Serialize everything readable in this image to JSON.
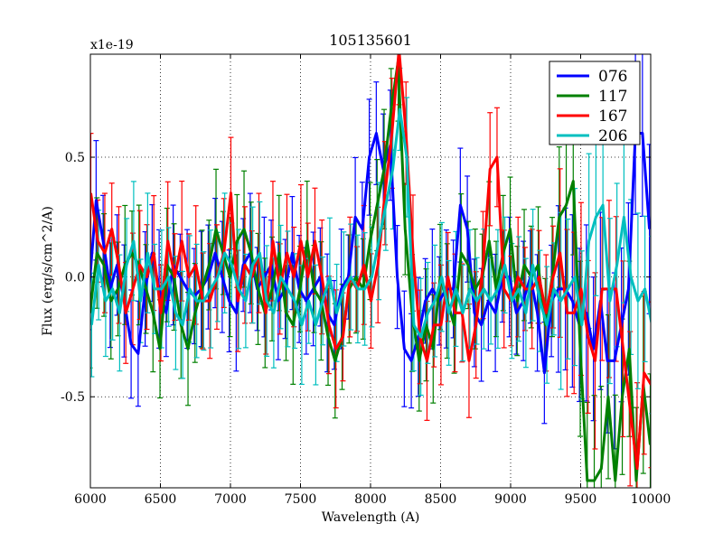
{
  "chart_data": {
    "type": "line",
    "title": "105135601",
    "xlabel": "Wavelength (A)",
    "ylabel": "Flux (erg/s/cm^2/A)",
    "offset_label": "x1e-19",
    "xlim": [
      6000,
      10000
    ],
    "ylim": [
      -0.88,
      0.93
    ],
    "xticks": [
      6000,
      6500,
      7000,
      7500,
      8000,
      8500,
      9000,
      9500,
      10000
    ],
    "xtick_labels": [
      "6000",
      "6500",
      "7000",
      "7500",
      "8000",
      "8500",
      "9000",
      "9500",
      "10000"
    ],
    "yticks": [
      -0.5,
      0.0,
      0.5
    ],
    "ytick_labels": [
      "-0.5",
      "0.0",
      "0.5"
    ],
    "grid": true,
    "legend_position": "top-right",
    "x": [
      6000,
      6050,
      6100,
      6150,
      6200,
      6250,
      6300,
      6350,
      6400,
      6450,
      6500,
      6550,
      6600,
      6650,
      6700,
      6750,
      6800,
      6850,
      6900,
      6950,
      7000,
      7050,
      7100,
      7150,
      7200,
      7250,
      7300,
      7350,
      7400,
      7450,
      7500,
      7550,
      7600,
      7650,
      7700,
      7750,
      7800,
      7850,
      7900,
      7950,
      8000,
      8050,
      8100,
      8150,
      8200,
      8250,
      8300,
      8350,
      8400,
      8450,
      8500,
      8550,
      8600,
      8650,
      8700,
      8750,
      8800,
      8850,
      8900,
      8950,
      9000,
      9050,
      9100,
      9150,
      9200,
      9250,
      9300,
      9350,
      9400,
      9450,
      9500,
      9550,
      9600,
      9650,
      9700,
      9750,
      9800,
      9850,
      9900,
      9950,
      10000
    ],
    "series": [
      {
        "name": "076",
        "color": "#0000ff",
        "values": [
          -0.05,
          0.32,
          0.15,
          -0.05,
          0.05,
          -0.1,
          -0.28,
          -0.32,
          -0.05,
          0.1,
          -0.05,
          -0.15,
          0.05,
          0.0,
          -0.05,
          -0.08,
          -0.05,
          0.0,
          0.1,
          0.0,
          -0.1,
          -0.15,
          0.05,
          0.1,
          -0.05,
          0.0,
          0.05,
          -0.1,
          -0.05,
          0.1,
          -0.05,
          -0.1,
          -0.05,
          0.0,
          -0.15,
          -0.2,
          -0.05,
          0.0,
          0.25,
          0.2,
          0.5,
          0.6,
          0.45,
          0.55,
          0.0,
          -0.3,
          -0.35,
          -0.25,
          -0.1,
          -0.05,
          -0.1,
          -0.05,
          -0.05,
          0.3,
          0.2,
          -0.15,
          -0.2,
          -0.1,
          -0.15,
          0.0,
          0.0,
          -0.15,
          -0.1,
          0.0,
          -0.15,
          -0.4,
          -0.1,
          -0.05,
          -0.05,
          -0.1,
          -0.2,
          -0.15,
          -0.3,
          -0.1,
          -0.35,
          -0.35,
          -0.2,
          -0.05,
          0.6,
          0.6,
          0.2
        ]
      },
      {
        "name": "117",
        "color": "#008000",
        "values": [
          -0.15,
          0.1,
          0.05,
          -0.1,
          -0.05,
          0.05,
          0.1,
          0.05,
          -0.05,
          -0.15,
          -0.3,
          0.05,
          0.0,
          -0.2,
          -0.3,
          -0.15,
          -0.05,
          0.05,
          0.2,
          0.1,
          0.0,
          0.15,
          0.2,
          0.1,
          -0.05,
          -0.15,
          -0.05,
          0.1,
          -0.15,
          -0.2,
          -0.05,
          0.15,
          -0.05,
          -0.1,
          -0.25,
          -0.35,
          -0.25,
          -0.05,
          0.0,
          -0.05,
          0.15,
          0.3,
          0.45,
          0.7,
          0.9,
          0.2,
          -0.15,
          -0.35,
          -0.2,
          -0.3,
          0.0,
          -0.1,
          -0.2,
          0.1,
          0.05,
          -0.05,
          0.0,
          0.15,
          -0.05,
          0.1,
          0.2,
          -0.1,
          0.05,
          0.0,
          0.05,
          -0.2,
          0.0,
          0.25,
          0.3,
          0.4,
          -0.3,
          -0.85,
          -0.85,
          -0.8,
          -0.5,
          -0.85,
          -0.5,
          -0.3,
          -0.85,
          -0.45,
          -0.7
        ]
      },
      {
        "name": "167",
        "color": "#ff0000",
        "values": [
          0.35,
          0.15,
          0.1,
          0.2,
          0.05,
          -0.15,
          -0.05,
          0.05,
          0.0,
          0.1,
          -0.15,
          0.15,
          0.0,
          0.15,
          0.0,
          0.05,
          -0.1,
          -0.1,
          0.0,
          0.1,
          0.35,
          -0.1,
          0.05,
          0.0,
          0.1,
          -0.15,
          0.15,
          -0.05,
          0.1,
          0.0,
          0.15,
          0.0,
          0.15,
          0.0,
          -0.2,
          -0.3,
          -0.25,
          0.0,
          -0.05,
          0.05,
          -0.1,
          0.05,
          0.35,
          0.6,
          0.95,
          0.6,
          0.1,
          -0.25,
          -0.35,
          -0.2,
          -0.2,
          0.0,
          -0.15,
          -0.15,
          -0.35,
          -0.2,
          0.05,
          0.45,
          0.5,
          -0.05,
          -0.1,
          0.0,
          -0.05,
          -0.05,
          0.0,
          -0.15,
          0.0,
          0.1,
          -0.15,
          -0.15,
          -0.05,
          -0.25,
          -0.35,
          -0.05,
          -0.05,
          -0.05,
          -0.3,
          -0.55,
          -0.8,
          -0.4,
          -0.45
        ]
      },
      {
        "name": "206",
        "color": "#00bfbf",
        "values": [
          -0.2,
          0.05,
          -0.1,
          -0.05,
          -0.15,
          0.05,
          0.15,
          -0.1,
          0.1,
          -0.05,
          -0.05,
          0.0,
          -0.15,
          -0.2,
          -0.05,
          -0.1,
          -0.1,
          -0.05,
          0.0,
          0.1,
          0.05,
          -0.05,
          -0.1,
          0.05,
          0.1,
          -0.1,
          -0.15,
          0.0,
          -0.05,
          -0.1,
          -0.2,
          -0.1,
          -0.2,
          -0.1,
          0.0,
          -0.15,
          -0.05,
          0.0,
          -0.05,
          -0.05,
          0.0,
          0.15,
          0.3,
          0.45,
          0.7,
          0.5,
          -0.2,
          -0.25,
          -0.15,
          -0.1,
          0.0,
          -0.15,
          -0.05,
          -0.15,
          -0.05,
          -0.1,
          -0.05,
          -0.1,
          -0.05,
          0.05,
          -0.1,
          -0.05,
          -0.15,
          0.05,
          -0.1,
          -0.2,
          -0.05,
          -0.1,
          -0.05,
          0.0,
          -0.2,
          0.15,
          0.25,
          0.3,
          -0.1,
          0.05,
          0.25,
          0.0,
          -0.1,
          -0.05,
          -0.2
        ]
      }
    ]
  }
}
